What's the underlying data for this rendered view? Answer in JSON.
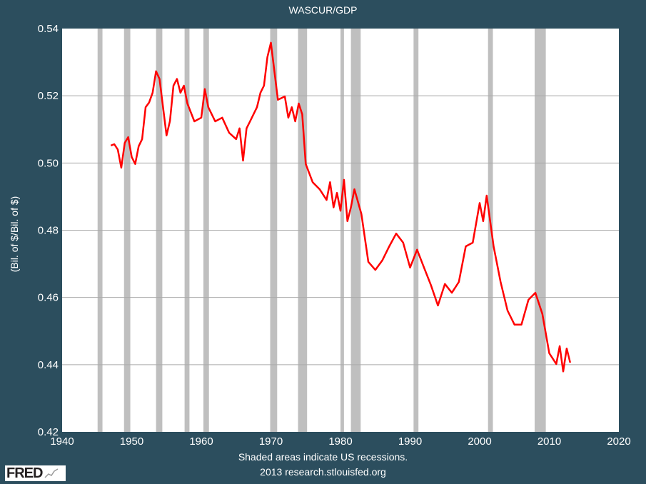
{
  "chart_data": {
    "type": "line",
    "title": "WASCUR/GDP",
    "ylabel": "(Bil. of $/Bil. of $)",
    "xlabel": "",
    "xlim": [
      1940,
      2020
    ],
    "ylim": [
      0.42,
      0.54
    ],
    "xticks": [
      "1940",
      "1950",
      "1960",
      "1970",
      "1980",
      "1990",
      "2000",
      "2010",
      "2020"
    ],
    "yticks": [
      "0.42",
      "0.44",
      "0.46",
      "0.48",
      "0.50",
      "0.52",
      "0.54"
    ],
    "grid": true,
    "line_color": "#ff0000",
    "recession_color": "#bfbfbf",
    "recessions": [
      [
        1945.1,
        1945.8
      ],
      [
        1948.9,
        1949.8
      ],
      [
        1953.5,
        1954.4
      ],
      [
        1957.6,
        1958.3
      ],
      [
        1960.3,
        1961.1
      ],
      [
        1969.9,
        1970.9
      ],
      [
        1973.9,
        1975.2
      ],
      [
        1980.0,
        1980.5
      ],
      [
        1981.5,
        1982.9
      ],
      [
        1990.5,
        1991.2
      ],
      [
        2001.2,
        2001.9
      ],
      [
        2007.9,
        2009.5
      ]
    ],
    "x": [
      1947,
      1947.5,
      1948,
      1948.5,
      1949,
      1949.5,
      1950,
      1950.5,
      1951,
      1951.5,
      1952,
      1952.5,
      1953,
      1953.5,
      1954,
      1954.5,
      1955,
      1955.5,
      1956,
      1956.5,
      1957,
      1957.5,
      1958,
      1959,
      1960,
      1960.5,
      1961,
      1962,
      1963,
      1964,
      1965,
      1965.5,
      1966,
      1966.5,
      1967,
      1968,
      1968.5,
      1969,
      1969.5,
      1970,
      1970.5,
      1971,
      1972,
      1972.5,
      1973,
      1973.5,
      1974,
      1974.5,
      1975,
      1976,
      1977,
      1978,
      1978.5,
      1979,
      1979.5,
      1980,
      1980.5,
      1981,
      1981.5,
      1982,
      1983,
      1984,
      1985,
      1986,
      1987,
      1988,
      1989,
      1990,
      1991,
      1992,
      1993,
      1994,
      1995,
      1996,
      1997,
      1998,
      1999,
      2000,
      2000.5,
      2001,
      2002,
      2003,
      2004,
      2005,
      2006,
      2007,
      2008,
      2009,
      2010,
      2011,
      2011.5,
      2012,
      2012.5,
      2013
    ],
    "y": [
      0.5052,
      0.5056,
      0.504,
      0.4986,
      0.506,
      0.5077,
      0.5018,
      0.4997,
      0.505,
      0.5071,
      0.5166,
      0.518,
      0.5209,
      0.5273,
      0.525,
      0.5166,
      0.5082,
      0.5125,
      0.523,
      0.525,
      0.5209,
      0.523,
      0.5177,
      0.5124,
      0.5135,
      0.522,
      0.5166,
      0.5124,
      0.5135,
      0.509,
      0.5071,
      0.5103,
      0.5007,
      0.5103,
      0.5124,
      0.5166,
      0.5209,
      0.523,
      0.5315,
      0.5358,
      0.5273,
      0.5188,
      0.5198,
      0.5135,
      0.5166,
      0.5124,
      0.5177,
      0.5145,
      0.4997,
      0.4943,
      0.4922,
      0.489,
      0.4943,
      0.4868,
      0.4911,
      0.4858,
      0.495,
      0.4827,
      0.4868,
      0.4922,
      0.4848,
      0.4706,
      0.4682,
      0.471,
      0.4752,
      0.479,
      0.4763,
      0.4689,
      0.4742,
      0.4689,
      0.4636,
      0.4576,
      0.464,
      0.4614,
      0.4646,
      0.4752,
      0.4763,
      0.4881,
      0.4827,
      0.4903,
      0.4752,
      0.4646,
      0.4561,
      0.4519,
      0.4519,
      0.4593,
      0.4614,
      0.4551,
      0.4434,
      0.4402,
      0.4455,
      0.438,
      0.4448,
      0.4406
    ]
  },
  "footer": {
    "note_line1": "Shaded areas indicate US recessions.",
    "note_line2": "2013 research.stlouisfed.org",
    "logo_text": "FRED"
  }
}
